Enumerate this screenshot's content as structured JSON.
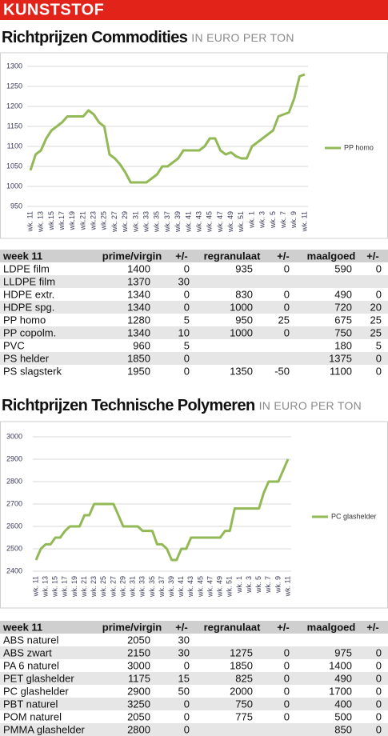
{
  "header": "KUNSTSTOF",
  "chart_data": [
    {
      "type": "line",
      "title": "Richtprijzen Commodities",
      "subtitle": "IN EURO PER TON",
      "categories": [
        "wk. 11",
        null,
        "wk. 13",
        null,
        "wk.15",
        null,
        "wk.17",
        null,
        "wk.19",
        null,
        "wk.21",
        null,
        "wk.23",
        null,
        "wk.25",
        null,
        "wk. 27",
        null,
        "wk. 29",
        null,
        "wk. 31",
        null,
        "wk. 33",
        null,
        "wk. 35",
        null,
        "wk. 37",
        null,
        "wk. 39",
        null,
        "wk. 41",
        null,
        "wk. 43",
        null,
        "wk. 45",
        null,
        "wk. 47",
        null,
        "wk. 49",
        null,
        "wk. 51",
        null,
        "wk. 1",
        null,
        "wk. 3",
        null,
        "wk. 5",
        null,
        "wk. 7",
        null,
        "wk. 9",
        null,
        "wk. 11"
      ],
      "series": [
        {
          "name": "PP homo",
          "color": "#92b955",
          "values": [
            1040,
            1080,
            1090,
            1120,
            1140,
            1150,
            1160,
            1175,
            1175,
            1175,
            1175,
            1190,
            1180,
            1160,
            1150,
            1080,
            1070,
            1055,
            1035,
            1010,
            1010,
            1010,
            1010,
            1020,
            1030,
            1050,
            1050,
            1060,
            1070,
            1090,
            1090,
            1090,
            1090,
            1100,
            1120,
            1120,
            1090,
            1080,
            1085,
            1075,
            1070,
            1070,
            1100,
            1110,
            1120,
            1130,
            1140,
            1175,
            1180,
            1185,
            1220,
            1275,
            1280
          ]
        }
      ],
      "ylim": [
        950,
        1300
      ],
      "yticks": [
        950,
        1000,
        1050,
        1100,
        1150,
        1200,
        1250,
        1300
      ],
      "grid": true,
      "legend": "right"
    },
    {
      "type": "line",
      "title": "Richtprijzen Technische Polymeren",
      "subtitle": "IN EURO PER TON",
      "categories": [
        "wk. 11",
        null,
        "wk. 13",
        null,
        "wk. 15",
        null,
        "wk. 17",
        null,
        "wk. 19",
        null,
        "wk. 21",
        null,
        "wk. 23",
        null,
        "wk. 25",
        null,
        "wk. 27",
        null,
        "wk. 29",
        null,
        "wk. 31",
        null,
        "wk. 33",
        null,
        "wk. 35",
        null,
        "wk. 37",
        null,
        "wk. 39",
        null,
        "wk. 41",
        null,
        "wk. 43",
        null,
        "wk. 45",
        null,
        "wk. 47",
        null,
        "wk. 49",
        null,
        "wk. 51",
        null,
        "wk. 1",
        null,
        "wk. 3",
        null,
        "wk. 5",
        null,
        "wk. 7",
        null,
        "wk. 9",
        null,
        "wk. 11"
      ],
      "series": [
        {
          "name": "PC glashelder",
          "color": "#92b955",
          "values": [
            2450,
            2500,
            2520,
            2520,
            2550,
            2550,
            2580,
            2600,
            2600,
            2600,
            2650,
            2650,
            2700,
            2700,
            2700,
            2700,
            2700,
            2650,
            2600,
            2600,
            2600,
            2600,
            2580,
            2580,
            2580,
            2520,
            2520,
            2500,
            2450,
            2450,
            2500,
            2500,
            2550,
            2550,
            2550,
            2550,
            2550,
            2550,
            2550,
            2580,
            2580,
            2680,
            2680,
            2680,
            2680,
            2680,
            2680,
            2750,
            2800,
            2800,
            2800,
            2850,
            2900
          ]
        }
      ],
      "ylim": [
        2400,
        3000
      ],
      "yticks": [
        2400,
        2500,
        2600,
        2700,
        2800,
        2900,
        3000
      ],
      "grid": true,
      "legend": "right"
    }
  ],
  "tables": [
    {
      "columns": [
        "week 11",
        "prime/virgin",
        "+/-",
        "regranulaat",
        "+/-",
        "maalgoed",
        "+/-"
      ],
      "rows": [
        [
          "LDPE film",
          1400,
          0,
          935,
          0,
          590,
          0
        ],
        [
          "LLDPE film",
          1370,
          30,
          null,
          null,
          null,
          null
        ],
        [
          "HDPE extr.",
          1340,
          0,
          830,
          0,
          490,
          0
        ],
        [
          "HDPE spg.",
          1340,
          0,
          1000,
          0,
          720,
          20
        ],
        [
          "PP homo",
          1280,
          5,
          950,
          25,
          675,
          25
        ],
        [
          "PP copolm.",
          1340,
          10,
          1000,
          0,
          750,
          25
        ],
        [
          "PVC",
          960,
          5,
          null,
          null,
          180,
          5
        ],
        [
          "PS helder",
          1850,
          0,
          null,
          null,
          1375,
          0
        ],
        [
          "PS slagsterk",
          1950,
          0,
          1350,
          -50,
          1100,
          0
        ]
      ]
    },
    {
      "columns": [
        "week 11",
        "prime/virgin",
        "+/-",
        "regranulaat",
        "+/-",
        "maalgoed",
        "+/-"
      ],
      "rows": [
        [
          "ABS naturel",
          2050,
          30,
          null,
          null,
          null,
          null
        ],
        [
          "ABS zwart",
          2150,
          30,
          1275,
          0,
          975,
          0
        ],
        [
          "PA 6 naturel",
          3000,
          0,
          1850,
          0,
          1400,
          0
        ],
        [
          "PET glashelder",
          1175,
          15,
          825,
          0,
          490,
          0
        ],
        [
          "PC glashelder",
          2900,
          50,
          2000,
          0,
          1700,
          0
        ],
        [
          "PBT naturel",
          3250,
          0,
          750,
          0,
          400,
          0
        ],
        [
          "POM naturel",
          2050,
          0,
          775,
          0,
          500,
          0
        ],
        [
          "PMMA glashelder",
          2800,
          0,
          null,
          null,
          850,
          0
        ]
      ]
    }
  ]
}
